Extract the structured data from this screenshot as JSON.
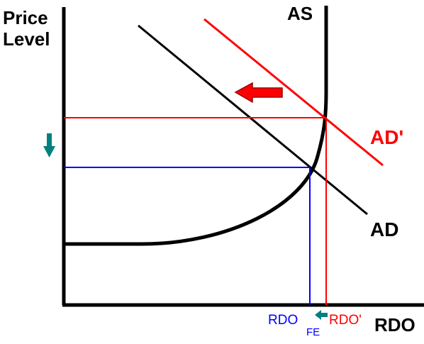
{
  "labels": {
    "y_axis_line1": "Price",
    "y_axis_line2": "Level",
    "x_axis": "RDO",
    "as_curve": "AS",
    "ad_curve": "AD",
    "ad_prime_curve": "AD'",
    "rdo_fe_main": "RDO",
    "rdo_fe_sub": "FE",
    "rdo_prime": "RDO'"
  },
  "colors": {
    "axes": "#000000",
    "ad_original": "#000000",
    "ad_shifted": "#ff0000",
    "as_curve": "#000000",
    "equilibrium_new": "#0000ff",
    "equilibrium_old": "#ff0000",
    "price_down_arrow": "#008080",
    "rdo_shift_arrow": "#008080",
    "demand_shift_arrow": "#ff0000"
  },
  "icons": {
    "price_down_arrow": "arrow-down",
    "demand_shift_arrow": "arrow-left",
    "rdo_shift_arrow": "arrow-left"
  }
}
